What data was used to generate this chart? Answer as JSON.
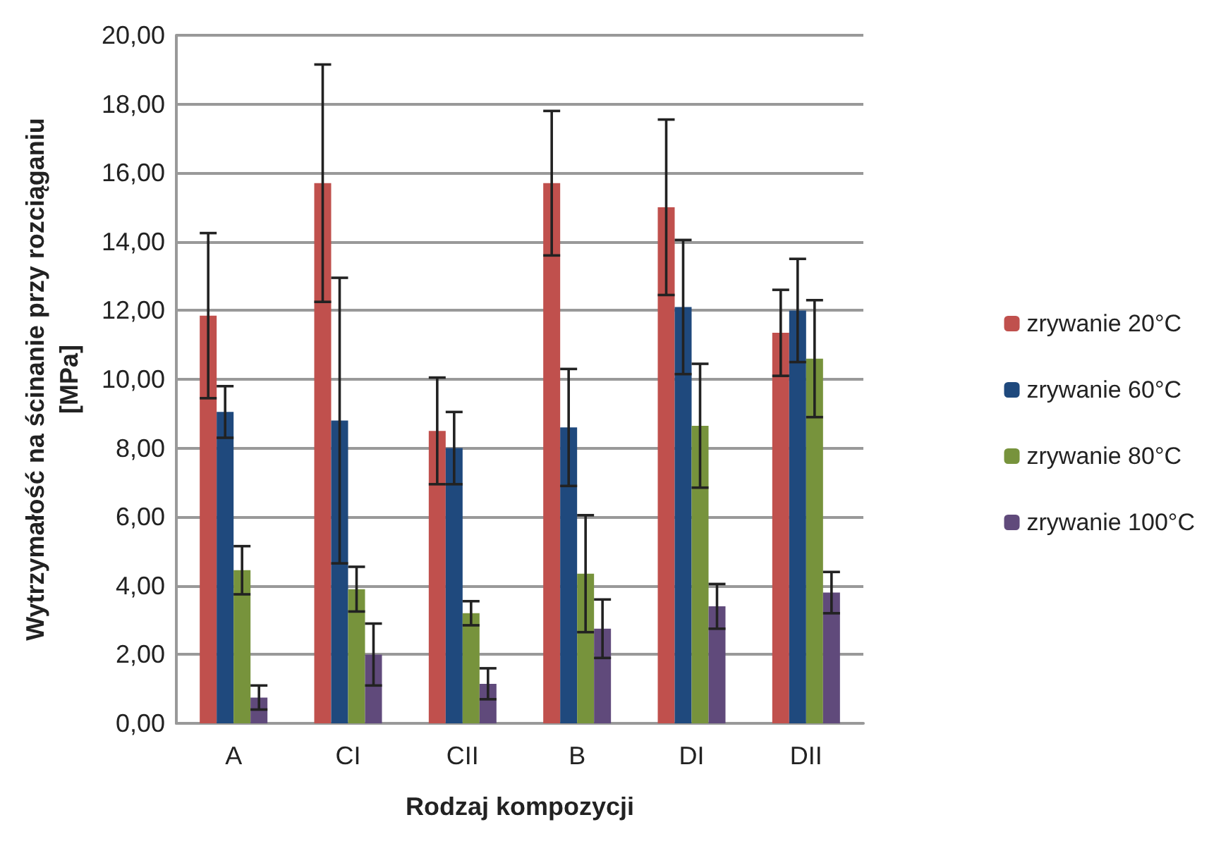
{
  "chart_data": {
    "type": "bar",
    "xlabel": "Rodzaj kompozycji",
    "ylabel": "Wytrzymałość na ścinanie przy rozciąganiu\n[MPa]",
    "categories": [
      "A",
      "CI",
      "CII",
      "B",
      "DI",
      "DII"
    ],
    "series": [
      {
        "name": "zrywanie 20°C",
        "color": "#c0504d",
        "values": [
          11.85,
          15.7,
          8.5,
          15.7,
          15.0,
          11.35
        ],
        "errors": [
          2.4,
          3.45,
          1.55,
          2.1,
          2.55,
          1.25
        ]
      },
      {
        "name": "zrywanie 60°C",
        "color": "#1f497d",
        "values": [
          9.05,
          8.8,
          8.0,
          8.6,
          12.1,
          12.0
        ],
        "errors": [
          0.75,
          4.15,
          1.05,
          1.7,
          1.95,
          1.5
        ]
      },
      {
        "name": "zrywanie 80°C",
        "color": "#77933c",
        "values": [
          4.45,
          3.9,
          3.2,
          4.35,
          8.65,
          10.6
        ],
        "errors": [
          0.7,
          0.65,
          0.35,
          1.7,
          1.8,
          1.7
        ]
      },
      {
        "name": "zrywanie 100°C",
        "color": "#604a7b",
        "values": [
          0.75,
          2.0,
          1.15,
          2.75,
          3.4,
          3.8
        ],
        "errors": [
          0.35,
          0.9,
          0.45,
          0.85,
          0.65,
          0.6
        ]
      }
    ],
    "ylim": [
      0,
      20
    ],
    "yticks": [
      {
        "value": 0,
        "label": "0,00"
      },
      {
        "value": 2,
        "label": "2,00"
      },
      {
        "value": 4,
        "label": "4,00"
      },
      {
        "value": 6,
        "label": "6,00"
      },
      {
        "value": 8,
        "label": "8,00"
      },
      {
        "value": 10,
        "label": "10,00"
      },
      {
        "value": 12,
        "label": "12,00"
      },
      {
        "value": 14,
        "label": "14,00"
      },
      {
        "value": 16,
        "label": "16,00"
      },
      {
        "value": 18,
        "label": "18,00"
      },
      {
        "value": 20,
        "label": "20,00"
      }
    ],
    "grid": "y",
    "legend": "right"
  }
}
